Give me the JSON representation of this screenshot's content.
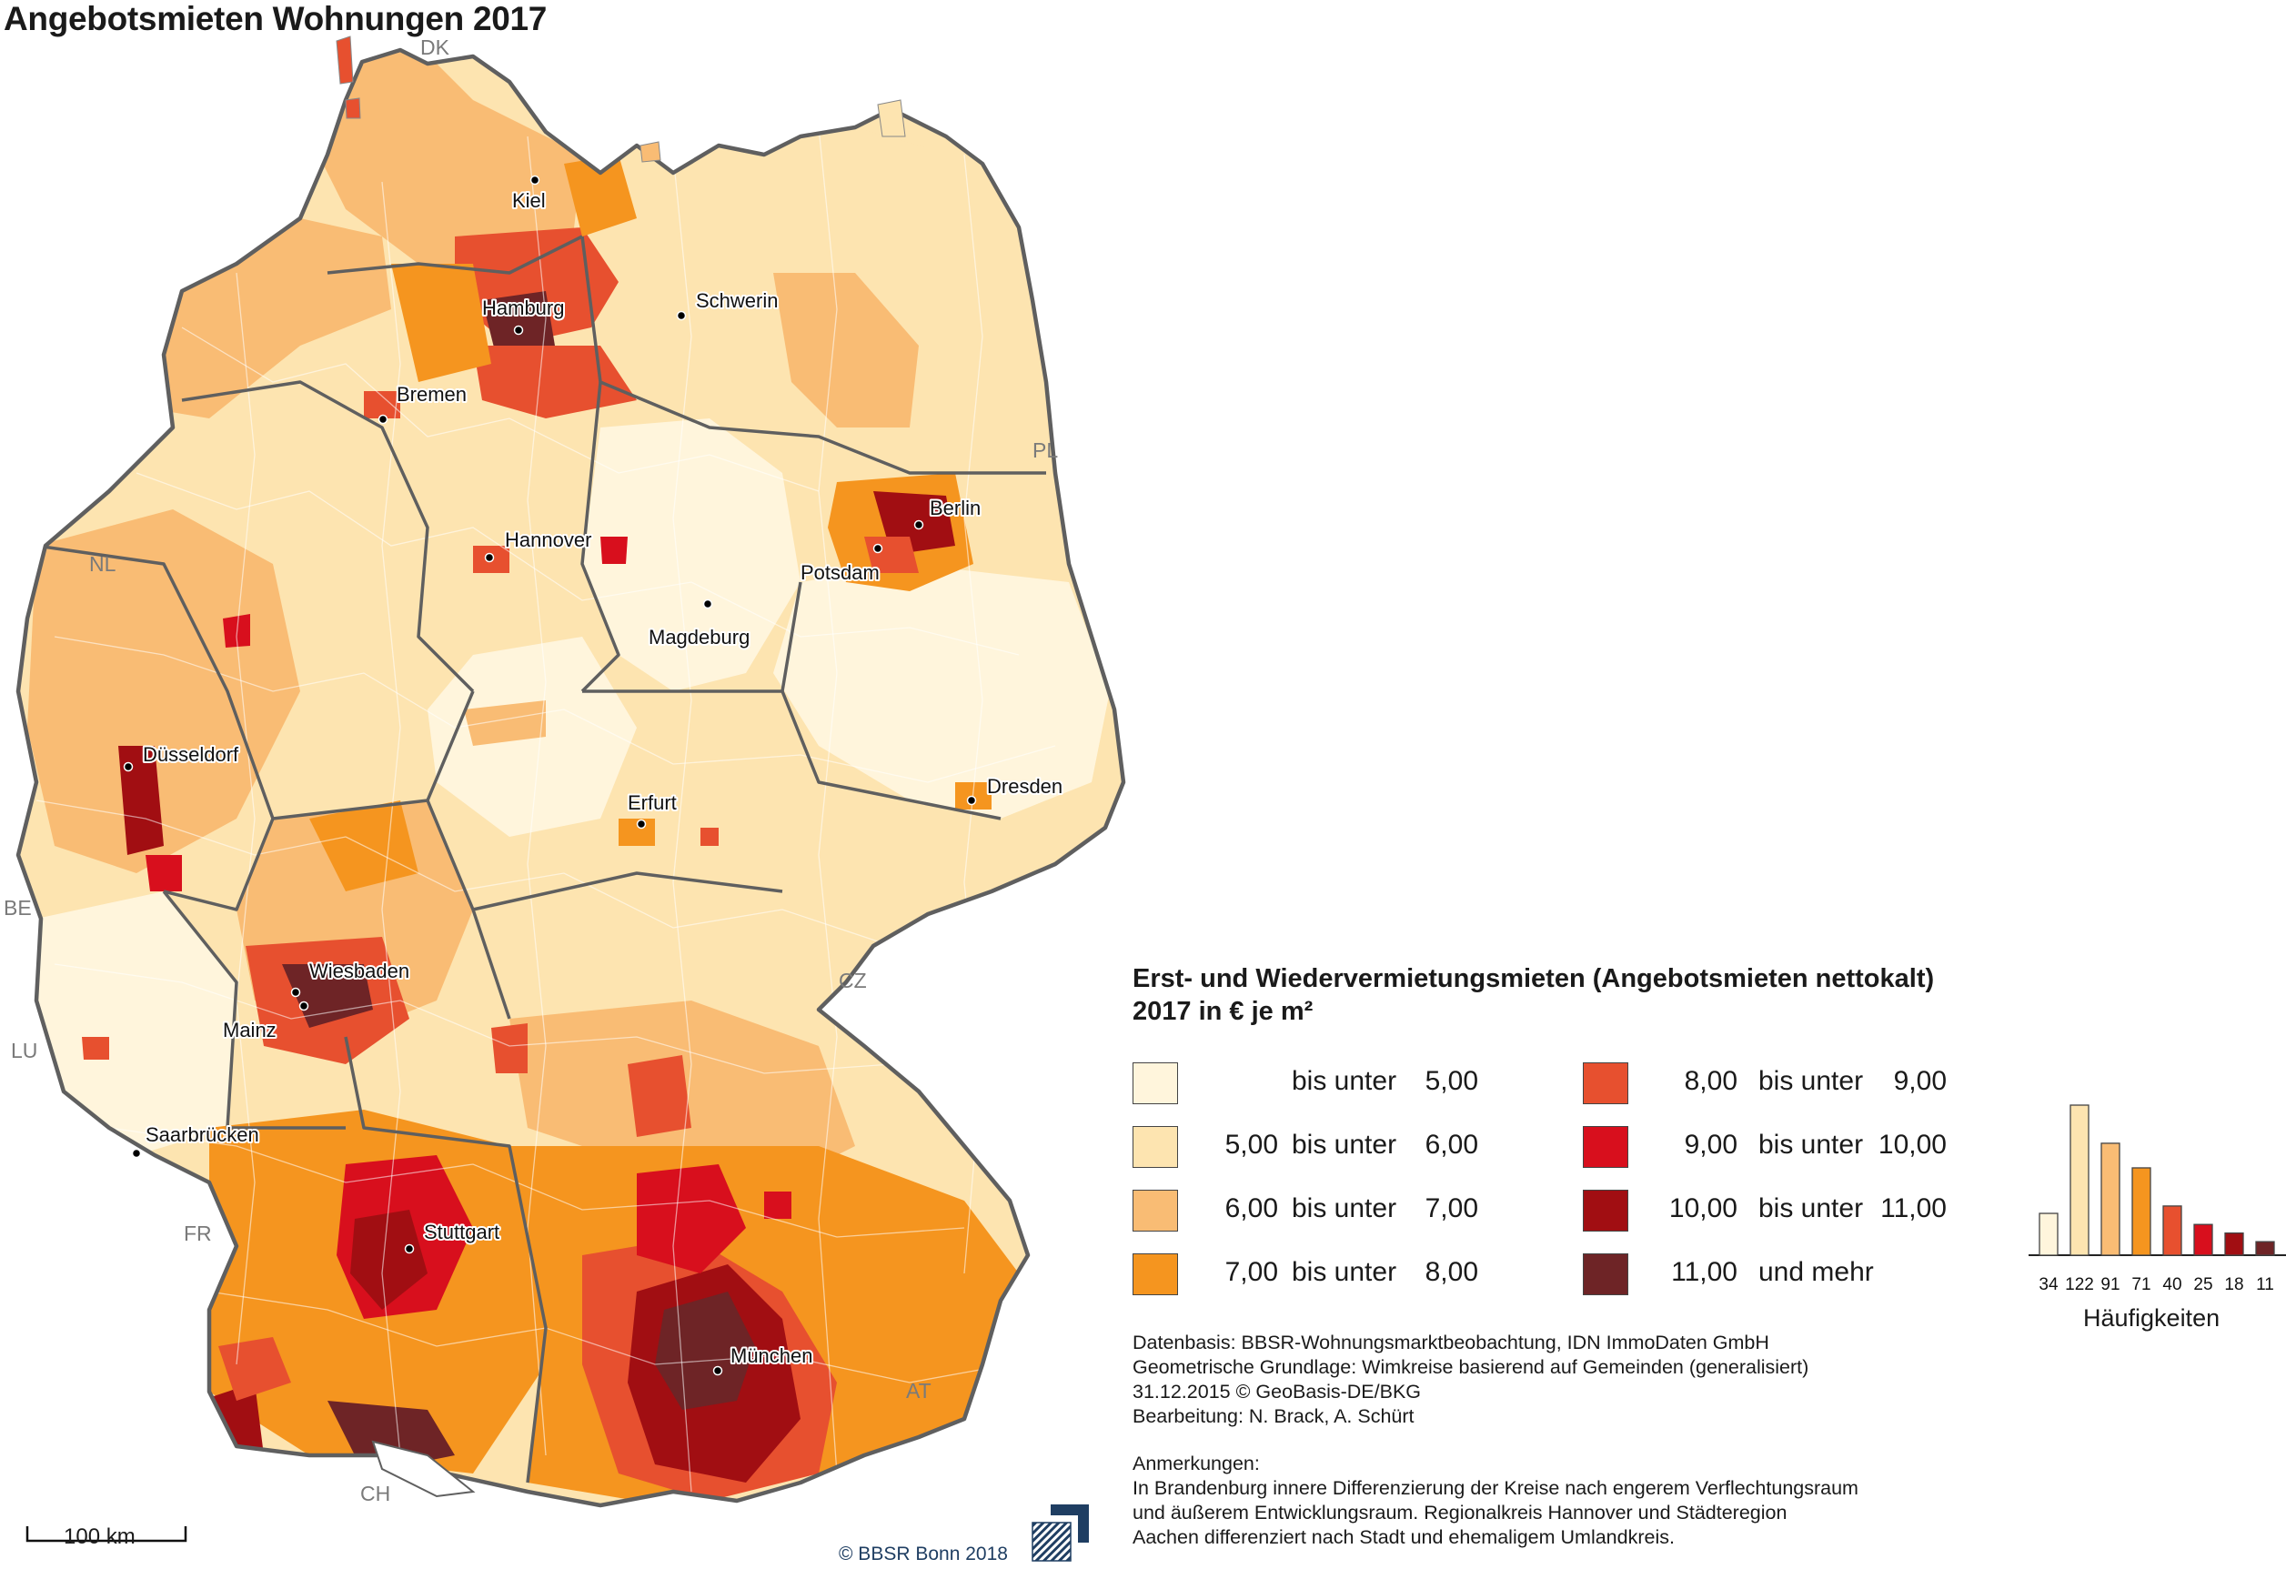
{
  "title": "Angebotsmieten Wohnungen 2017",
  "countries": [
    {
      "code": "DK"
    },
    {
      "code": "PL"
    },
    {
      "code": "NL"
    },
    {
      "code": "BE"
    },
    {
      "code": "LU"
    },
    {
      "code": "FR"
    },
    {
      "code": "CZ"
    },
    {
      "code": "AT"
    },
    {
      "code": "CH"
    }
  ],
  "cities": [
    {
      "name": "Kiel",
      "class": 6
    },
    {
      "name": "Hamburg",
      "class": 7
    },
    {
      "name": "Schwerin",
      "class": 1
    },
    {
      "name": "Bremen",
      "class": 4
    },
    {
      "name": "Hannover",
      "class": 3
    },
    {
      "name": "Berlin",
      "class": 6
    },
    {
      "name": "Potsdam",
      "class": 5
    },
    {
      "name": "Magdeburg",
      "class": 0
    },
    {
      "name": "Düsseldorf",
      "class": 6
    },
    {
      "name": "Erfurt",
      "class": 3
    },
    {
      "name": "Dresden",
      "class": 3
    },
    {
      "name": "Wiesbaden",
      "class": 6
    },
    {
      "name": "Mainz",
      "class": 6
    },
    {
      "name": "Saarbrücken",
      "class": 1
    },
    {
      "name": "Stuttgart",
      "class": 6
    },
    {
      "name": "München",
      "class": 7
    }
  ],
  "legend": {
    "title_line1": "Erst- und Wiedervermietungsmieten (Angebotsmieten nettokalt)",
    "title_line2": "2017 in € je m²",
    "classes": [
      {
        "from": "",
        "mid": "bis unter",
        "to": "5,00",
        "color": "#fff5dc"
      },
      {
        "from": "5,00",
        "mid": "bis unter",
        "to": "6,00",
        "color": "#fde4b0"
      },
      {
        "from": "6,00",
        "mid": "bis unter",
        "to": "7,00",
        "color": "#f9bc74"
      },
      {
        "from": "7,00",
        "mid": "bis unter",
        "to": "8,00",
        "color": "#f5951f"
      },
      {
        "from": "8,00",
        "mid": "bis unter",
        "to": "9,00",
        "color": "#e7502f"
      },
      {
        "from": "9,00",
        "mid": "bis unter",
        "to": "10,00",
        "color": "#d80f1d"
      },
      {
        "from": "10,00",
        "mid": "bis unter",
        "to": "11,00",
        "color": "#a10e12"
      },
      {
        "from": "11,00",
        "mid": "und mehr",
        "to": "",
        "color": "#6e2426"
      }
    ]
  },
  "histogram": {
    "label": "Häufigkeiten",
    "values": [
      34,
      122,
      91,
      71,
      40,
      25,
      18,
      11
    ],
    "colors": [
      "#fff5dc",
      "#fde4b0",
      "#f9bc74",
      "#f5951f",
      "#e7502f",
      "#d80f1d",
      "#a10e12",
      "#6e2426"
    ]
  },
  "source": {
    "line1": "Datenbasis: BBSR-Wohnungsmarktbeobachtung, IDN ImmoDaten GmbH",
    "line2": "Geometrische Grundlage: Wimkreise basierend auf Gemeinden (generalisiert)",
    "line3": "31.12.2015 © GeoBasis-DE/BKG",
    "line4": "Bearbeitung: N. Brack, A. Schürt"
  },
  "notes": {
    "heading": "Anmerkungen:",
    "line1": "In Brandenburg innere Differenzierung der Kreise nach engerem Verflechtungsraum",
    "line2": "und äußerem Entwicklungsraum. Regionalkreis Hannover und Städteregion",
    "line3": "Aachen differenziert nach Stadt und ehemaligem Umlandkreis."
  },
  "scale_label": "100 km",
  "copyright": "©  BBSR Bonn 2018"
}
